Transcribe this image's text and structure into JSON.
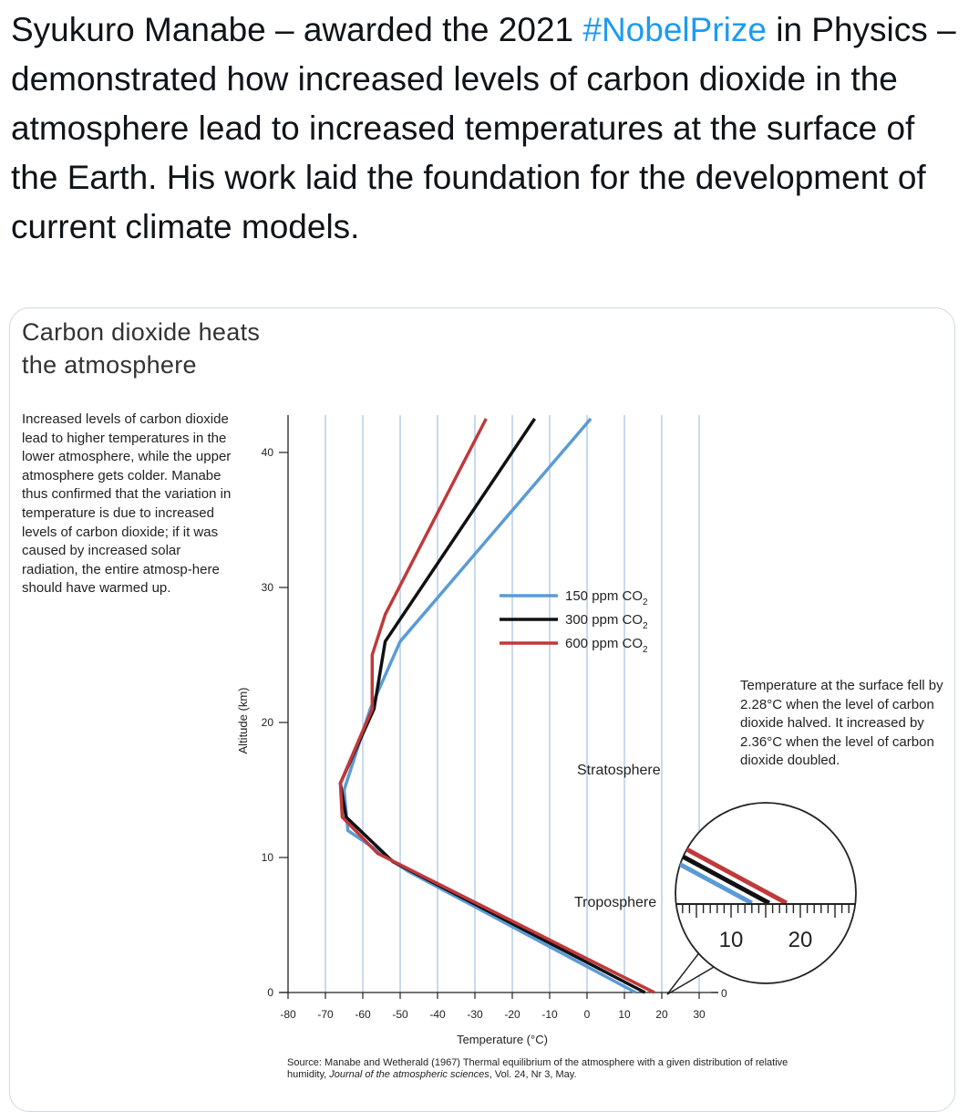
{
  "tweet": {
    "text_before": "Syukuro Manabe – awarded the 2021 ",
    "hashtag": "#NobelPrize",
    "text_after": " in Physics – demonstrated how increased levels of carbon dioxide in the atmosphere lead to increased temperatures at the surface of the Earth. His work laid the foundation for the development of current climate models."
  },
  "figure": {
    "title_line1": "Carbon dioxide heats",
    "title_line2": "the atmosphere",
    "description": "Increased levels of carbon dioxide lead to higher temperatures in the lower atmosphere, while the upper atmosphere gets colder. Manabe thus confirmed that the variation in temperature is due to increased levels of carbon dioxide; if it was caused by increased solar radiation, the entire atmosp-here should have warmed up.",
    "note": "Temperature at the surface fell by 2.28°C when the level of carbon dioxide halved. It increased by 2.36°C when the level of carbon dioxide doubled.",
    "source_prefix": "Source: Manabe and Wetherald (1967) Thermal equilibrium of the atmosphere with a given distribution of relative humidity, ",
    "source_journal": "Journal of the atmospheric sciences",
    "source_suffix": ", Vol. 24, Nr 3, May.",
    "stratosphere_label": "Stratosphere",
    "troposphere_label": "Troposphere",
    "inset_ticks": [
      "10",
      "20"
    ],
    "inset_zero": "0"
  },
  "chart_data": {
    "type": "line",
    "title": "Carbon dioxide heats the atmosphere",
    "xlabel": "Temperature (°C)",
    "ylabel": "Altitude (km)",
    "xlim": [
      -80,
      30
    ],
    "ylim": [
      0,
      43
    ],
    "x_ticks": [
      -80,
      -70,
      -60,
      -50,
      -40,
      -30,
      -20,
      -10,
      0,
      10,
      20,
      30
    ],
    "y_ticks": [
      0,
      10,
      20,
      30,
      40
    ],
    "colors": {
      "150": "#5b9bd5",
      "300": "#111111",
      "600": "#c0393b",
      "grid": "#aac6e6"
    },
    "series": [
      {
        "name": "150 ppm CO2",
        "ppm": "150",
        "label": "150 ppm CO",
        "subscript": "2",
        "color_key": "150",
        "points": [
          [
            13,
            0
          ],
          [
            -48,
            9
          ],
          [
            -64,
            12
          ],
          [
            -65,
            15
          ],
          [
            -58,
            21
          ],
          [
            -50,
            26
          ],
          [
            1,
            42.5
          ]
        ]
      },
      {
        "name": "300 ppm CO2",
        "ppm": "300",
        "label": "300 ppm CO",
        "subscript": "2",
        "color_key": "300",
        "points": [
          [
            15.5,
            0
          ],
          [
            -52,
            9.7
          ],
          [
            -64.5,
            13
          ],
          [
            -66,
            15.5
          ],
          [
            -57,
            21
          ],
          [
            -54,
            26
          ],
          [
            -14,
            42.5
          ]
        ]
      },
      {
        "name": "600 ppm CO2",
        "ppm": "600",
        "label": "600 ppm CO",
        "subscript": "2",
        "color_key": "600",
        "points": [
          [
            18,
            0
          ],
          [
            -56,
            10.3
          ],
          [
            -65.5,
            13
          ],
          [
            -66,
            15.5
          ],
          [
            -57.5,
            21
          ],
          [
            -57.5,
            25
          ],
          [
            -54,
            28
          ],
          [
            -27,
            42.5
          ]
        ]
      }
    ]
  }
}
